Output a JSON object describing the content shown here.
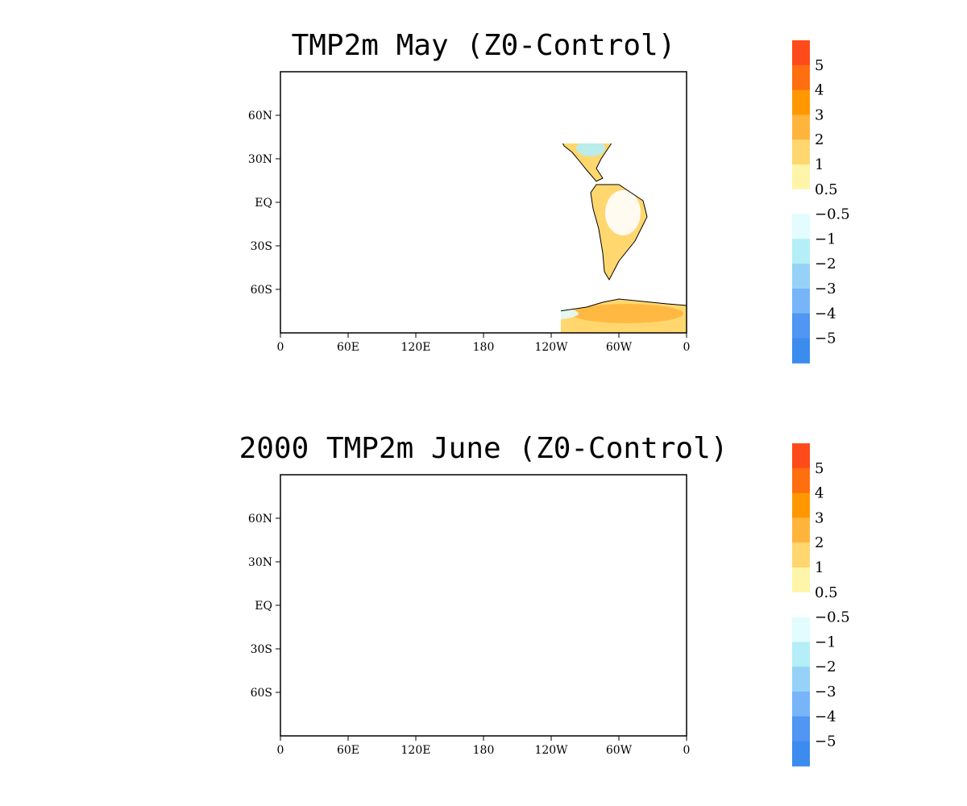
{
  "panels": [
    {
      "title": "TMP2m May (Z0-Control)",
      "lat_ticks": [
        "60N",
        "30N",
        "EQ",
        "30S",
        "60S"
      ],
      "lon_ticks": [
        "0",
        "60E",
        "120E",
        "180",
        "120W",
        "60W",
        "0"
      ]
    },
    {
      "title": "2000 TMP2m June (Z0-Control)",
      "lat_ticks": [
        "60N",
        "30N",
        "EQ",
        "30S",
        "60S"
      ],
      "lon_ticks": [
        "0",
        "60E",
        "120E",
        "180",
        "120W",
        "60W",
        "0"
      ]
    }
  ],
  "colorbar": {
    "labels": [
      "5",
      "4",
      "3",
      "2",
      "1",
      "0.5",
      "-0.5",
      "-1",
      "-2",
      "-3",
      "-4",
      "-5"
    ],
    "colors": [
      "#ff4a1a",
      "#ff6e0f",
      "#ff9800",
      "#ffb43c",
      "#ffd76e",
      "#fff5a8",
      "#ffffff",
      "#e2fcff",
      "#b4eef6",
      "#96d2f8",
      "#78b4f8",
      "#5096f2"
    ]
  },
  "map": {
    "land_warm_light": "#fff5a8",
    "land_warm": "#ffd76e",
    "land_warm_mid": "#ffb43c",
    "land_warm_strong": "#ff9800",
    "cool_light": "#e2fcff",
    "cool_mid": "#b4eef6",
    "cool_strong": "#96d2f8"
  }
}
